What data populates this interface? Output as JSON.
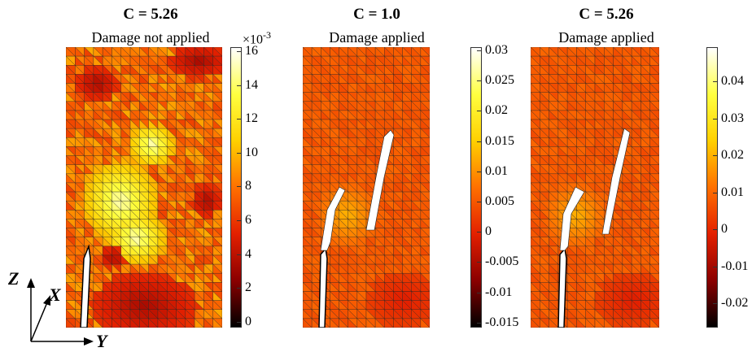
{
  "panels": [
    {
      "title": "C = 5.26",
      "subtitle": "Damage not applied",
      "colorbar": {
        "exponent": "×10-3",
        "ticks": [
          "16",
          "14",
          "12",
          "10",
          "8",
          "6",
          "4",
          "2",
          "0"
        ]
      }
    },
    {
      "title": "C = 1.0",
      "subtitle": "Damage applied",
      "colorbar": {
        "ticks": [
          "0.03",
          "0.025",
          "0.02",
          "0.015",
          "0.01",
          "0.005",
          "0",
          "-0.005",
          "-0.01",
          "-0.015"
        ]
      }
    },
    {
      "title": "C = 5.26",
      "subtitle": "Damage applied",
      "colorbar": {
        "ticks": [
          "0.04",
          "0.03",
          "0.02",
          "0.01",
          "0",
          "-0.01",
          "-0.02"
        ]
      }
    }
  ],
  "axes": {
    "z": "Z",
    "x": "X",
    "y": "Y"
  },
  "colormap": [
    "#000000",
    "#8b0000",
    "#e32000",
    "#ff7000",
    "#ffd000",
    "#ffff40",
    "#ffffff"
  ]
}
